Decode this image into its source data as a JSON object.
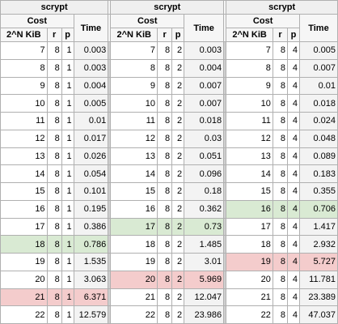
{
  "blocks": [
    {
      "title": "scrypt",
      "cost_label": "Cost",
      "time_label": "Time",
      "n_label": "2^N KiB",
      "r_label": "r",
      "p_label": "p",
      "rows": [
        {
          "n": "7",
          "r": "8",
          "p": "1",
          "time": "0.003",
          "hl": ""
        },
        {
          "n": "8",
          "r": "8",
          "p": "1",
          "time": "0.003",
          "hl": ""
        },
        {
          "n": "9",
          "r": "8",
          "p": "1",
          "time": "0.004",
          "hl": ""
        },
        {
          "n": "10",
          "r": "8",
          "p": "1",
          "time": "0.005",
          "hl": ""
        },
        {
          "n": "11",
          "r": "8",
          "p": "1",
          "time": "0.01",
          "hl": ""
        },
        {
          "n": "12",
          "r": "8",
          "p": "1",
          "time": "0.017",
          "hl": ""
        },
        {
          "n": "13",
          "r": "8",
          "p": "1",
          "time": "0.026",
          "hl": ""
        },
        {
          "n": "14",
          "r": "8",
          "p": "1",
          "time": "0.054",
          "hl": ""
        },
        {
          "n": "15",
          "r": "8",
          "p": "1",
          "time": "0.101",
          "hl": ""
        },
        {
          "n": "16",
          "r": "8",
          "p": "1",
          "time": "0.195",
          "hl": ""
        },
        {
          "n": "17",
          "r": "8",
          "p": "1",
          "time": "0.386",
          "hl": ""
        },
        {
          "n": "18",
          "r": "8",
          "p": "1",
          "time": "0.786",
          "hl": "green"
        },
        {
          "n": "19",
          "r": "8",
          "p": "1",
          "time": "1.535",
          "hl": ""
        },
        {
          "n": "20",
          "r": "8",
          "p": "1",
          "time": "3.063",
          "hl": ""
        },
        {
          "n": "21",
          "r": "8",
          "p": "1",
          "time": "6.371",
          "hl": "red"
        },
        {
          "n": "22",
          "r": "8",
          "p": "1",
          "time": "12.579",
          "hl": ""
        }
      ]
    },
    {
      "title": "scrypt",
      "cost_label": "Cost",
      "time_label": "Time",
      "n_label": "2^N KiB",
      "r_label": "r",
      "p_label": "p",
      "rows": [
        {
          "n": "7",
          "r": "8",
          "p": "2",
          "time": "0.003",
          "hl": ""
        },
        {
          "n": "8",
          "r": "8",
          "p": "2",
          "time": "0.004",
          "hl": ""
        },
        {
          "n": "9",
          "r": "8",
          "p": "2",
          "time": "0.007",
          "hl": ""
        },
        {
          "n": "10",
          "r": "8",
          "p": "2",
          "time": "0.007",
          "hl": ""
        },
        {
          "n": "11",
          "r": "8",
          "p": "2",
          "time": "0.018",
          "hl": ""
        },
        {
          "n": "12",
          "r": "8",
          "p": "2",
          "time": "0.03",
          "hl": ""
        },
        {
          "n": "13",
          "r": "8",
          "p": "2",
          "time": "0.051",
          "hl": ""
        },
        {
          "n": "14",
          "r": "8",
          "p": "2",
          "time": "0.096",
          "hl": ""
        },
        {
          "n": "15",
          "r": "8",
          "p": "2",
          "time": "0.18",
          "hl": ""
        },
        {
          "n": "16",
          "r": "8",
          "p": "2",
          "time": "0.362",
          "hl": ""
        },
        {
          "n": "17",
          "r": "8",
          "p": "2",
          "time": "0.73",
          "hl": "green"
        },
        {
          "n": "18",
          "r": "8",
          "p": "2",
          "time": "1.485",
          "hl": ""
        },
        {
          "n": "19",
          "r": "8",
          "p": "2",
          "time": "3.01",
          "hl": ""
        },
        {
          "n": "20",
          "r": "8",
          "p": "2",
          "time": "5.969",
          "hl": "red"
        },
        {
          "n": "21",
          "r": "8",
          "p": "2",
          "time": "12.047",
          "hl": ""
        },
        {
          "n": "22",
          "r": "8",
          "p": "2",
          "time": "23.986",
          "hl": ""
        }
      ]
    },
    {
      "title": "scrypt",
      "cost_label": "Cost",
      "time_label": "Time",
      "n_label": "2^N KiB",
      "r_label": "r",
      "p_label": "p",
      "rows": [
        {
          "n": "7",
          "r": "8",
          "p": "4",
          "time": "0.005",
          "hl": ""
        },
        {
          "n": "8",
          "r": "8",
          "p": "4",
          "time": "0.007",
          "hl": ""
        },
        {
          "n": "9",
          "r": "8",
          "p": "4",
          "time": "0.01",
          "hl": ""
        },
        {
          "n": "10",
          "r": "8",
          "p": "4",
          "time": "0.018",
          "hl": ""
        },
        {
          "n": "11",
          "r": "8",
          "p": "4",
          "time": "0.024",
          "hl": ""
        },
        {
          "n": "12",
          "r": "8",
          "p": "4",
          "time": "0.048",
          "hl": ""
        },
        {
          "n": "13",
          "r": "8",
          "p": "4",
          "time": "0.089",
          "hl": ""
        },
        {
          "n": "14",
          "r": "8",
          "p": "4",
          "time": "0.183",
          "hl": ""
        },
        {
          "n": "15",
          "r": "8",
          "p": "4",
          "time": "0.355",
          "hl": ""
        },
        {
          "n": "16",
          "r": "8",
          "p": "4",
          "time": "0.706",
          "hl": "green"
        },
        {
          "n": "17",
          "r": "8",
          "p": "4",
          "time": "1.417",
          "hl": ""
        },
        {
          "n": "18",
          "r": "8",
          "p": "4",
          "time": "2.932",
          "hl": ""
        },
        {
          "n": "19",
          "r": "8",
          "p": "4",
          "time": "5.727",
          "hl": "red"
        },
        {
          "n": "20",
          "r": "8",
          "p": "4",
          "time": "11.781",
          "hl": ""
        },
        {
          "n": "21",
          "r": "8",
          "p": "4",
          "time": "23.389",
          "hl": ""
        },
        {
          "n": "22",
          "r": "8",
          "p": "4",
          "time": "47.037",
          "hl": ""
        }
      ]
    }
  ],
  "colors": {
    "highlight_green": "#d9ead3",
    "highlight_red": "#f4cccc",
    "time_column": "#f3f3f3",
    "grid": "#b0b0b0"
  }
}
